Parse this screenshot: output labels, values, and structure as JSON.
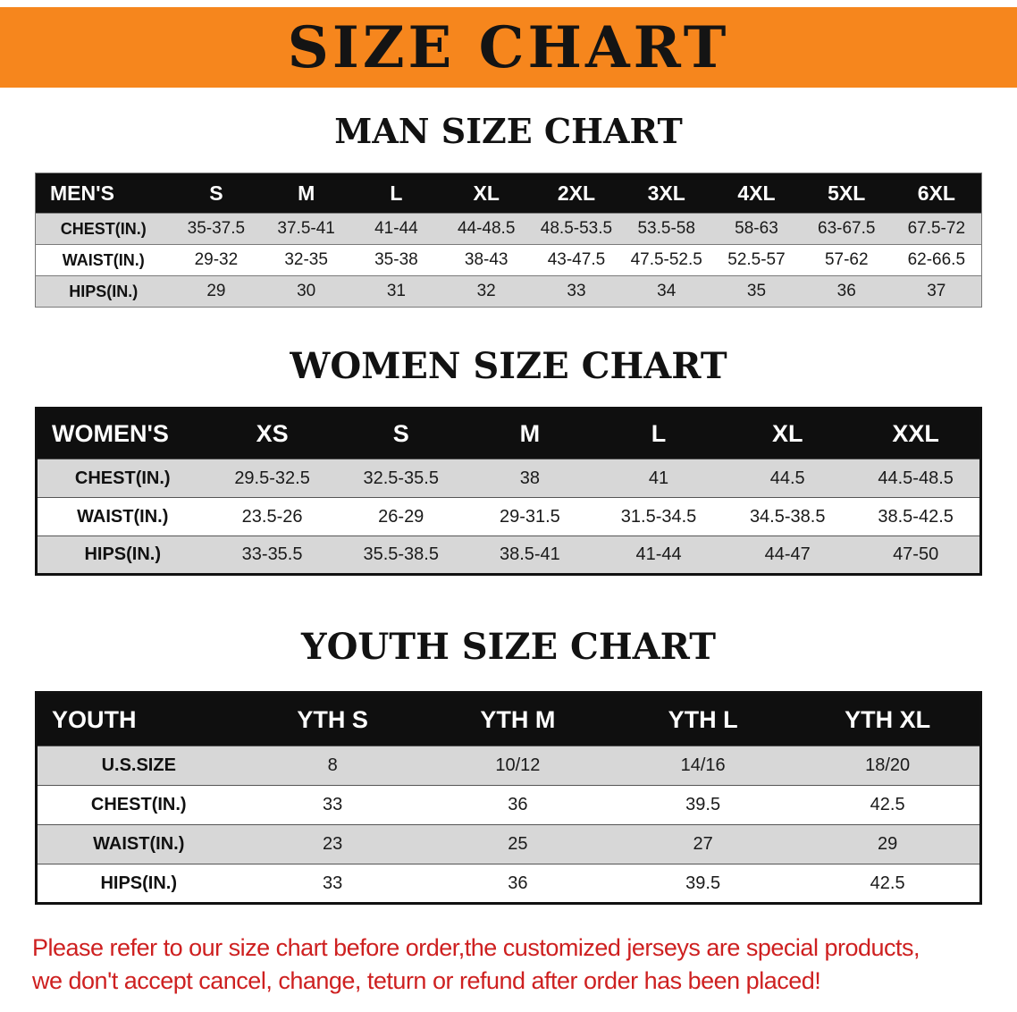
{
  "banner": {
    "title": "SIZE CHART"
  },
  "sections": [
    {
      "heading": "MAN SIZE CHART",
      "table": {
        "first_col_label": "MEN'S",
        "columns": [
          "S",
          "M",
          "L",
          "XL",
          "2XL",
          "3XL",
          "4XL",
          "5XL",
          "6XL"
        ],
        "rows": [
          {
            "label": "CHEST(IN.)",
            "values": [
              "35-37.5",
              "37.5-41",
              "41-44",
              "44-48.5",
              "48.5-53.5",
              "53.5-58",
              "58-63",
              "63-67.5",
              "67.5-72"
            ]
          },
          {
            "label": "WAIST(IN.)",
            "values": [
              "29-32",
              "32-35",
              "35-38",
              "38-43",
              "43-47.5",
              "47.5-52.5",
              "52.5-57",
              "57-62",
              "62-66.5"
            ]
          },
          {
            "label": "HIPS(IN.)",
            "values": [
              "29",
              "30",
              "31",
              "32",
              "33",
              "34",
              "35",
              "36",
              "37"
            ]
          }
        ]
      }
    },
    {
      "heading": "WOMEN SIZE CHART",
      "table": {
        "first_col_label": "WOMEN'S",
        "columns": [
          "XS",
          "S",
          "M",
          "L",
          "XL",
          "XXL"
        ],
        "rows": [
          {
            "label": "CHEST(IN.)",
            "values": [
              "29.5-32.5",
              "32.5-35.5",
              "38",
              "41",
              "44.5",
              "44.5-48.5"
            ]
          },
          {
            "label": "WAIST(IN.)",
            "values": [
              "23.5-26",
              "26-29",
              "29-31.5",
              "31.5-34.5",
              "34.5-38.5",
              "38.5-42.5"
            ]
          },
          {
            "label": "HIPS(IN.)",
            "values": [
              "33-35.5",
              "35.5-38.5",
              "38.5-41",
              "41-44",
              "44-47",
              "47-50"
            ]
          }
        ]
      }
    },
    {
      "heading": "YOUTH SIZE CHART",
      "table": {
        "first_col_label": "YOUTH",
        "columns": [
          "YTH S",
          "YTH M",
          "YTH L",
          "YTH XL"
        ],
        "rows": [
          {
            "label": "U.S.SIZE",
            "values": [
              "8",
              "10/12",
              "14/16",
              "18/20"
            ]
          },
          {
            "label": "CHEST(IN.)",
            "values": [
              "33",
              "36",
              "39.5",
              "42.5"
            ]
          },
          {
            "label": "WAIST(IN.)",
            "values": [
              "23",
              "25",
              "27",
              "29"
            ]
          },
          {
            "label": "HIPS(IN.)",
            "values": [
              "33",
              "36",
              "39.5",
              "42.5"
            ]
          }
        ]
      }
    }
  ],
  "disclaimer": {
    "line1": "Please refer to our size chart before order,the customized jerseys are special products,",
    "line2": "we don't accept cancel, change, teturn or refund after order has been placed!"
  },
  "colors": {
    "banner_orange": "#f6861d",
    "table_header_black": "#0f0f0f",
    "row_gray": "#d7d7d7",
    "disclaimer_red": "#ce2020"
  }
}
